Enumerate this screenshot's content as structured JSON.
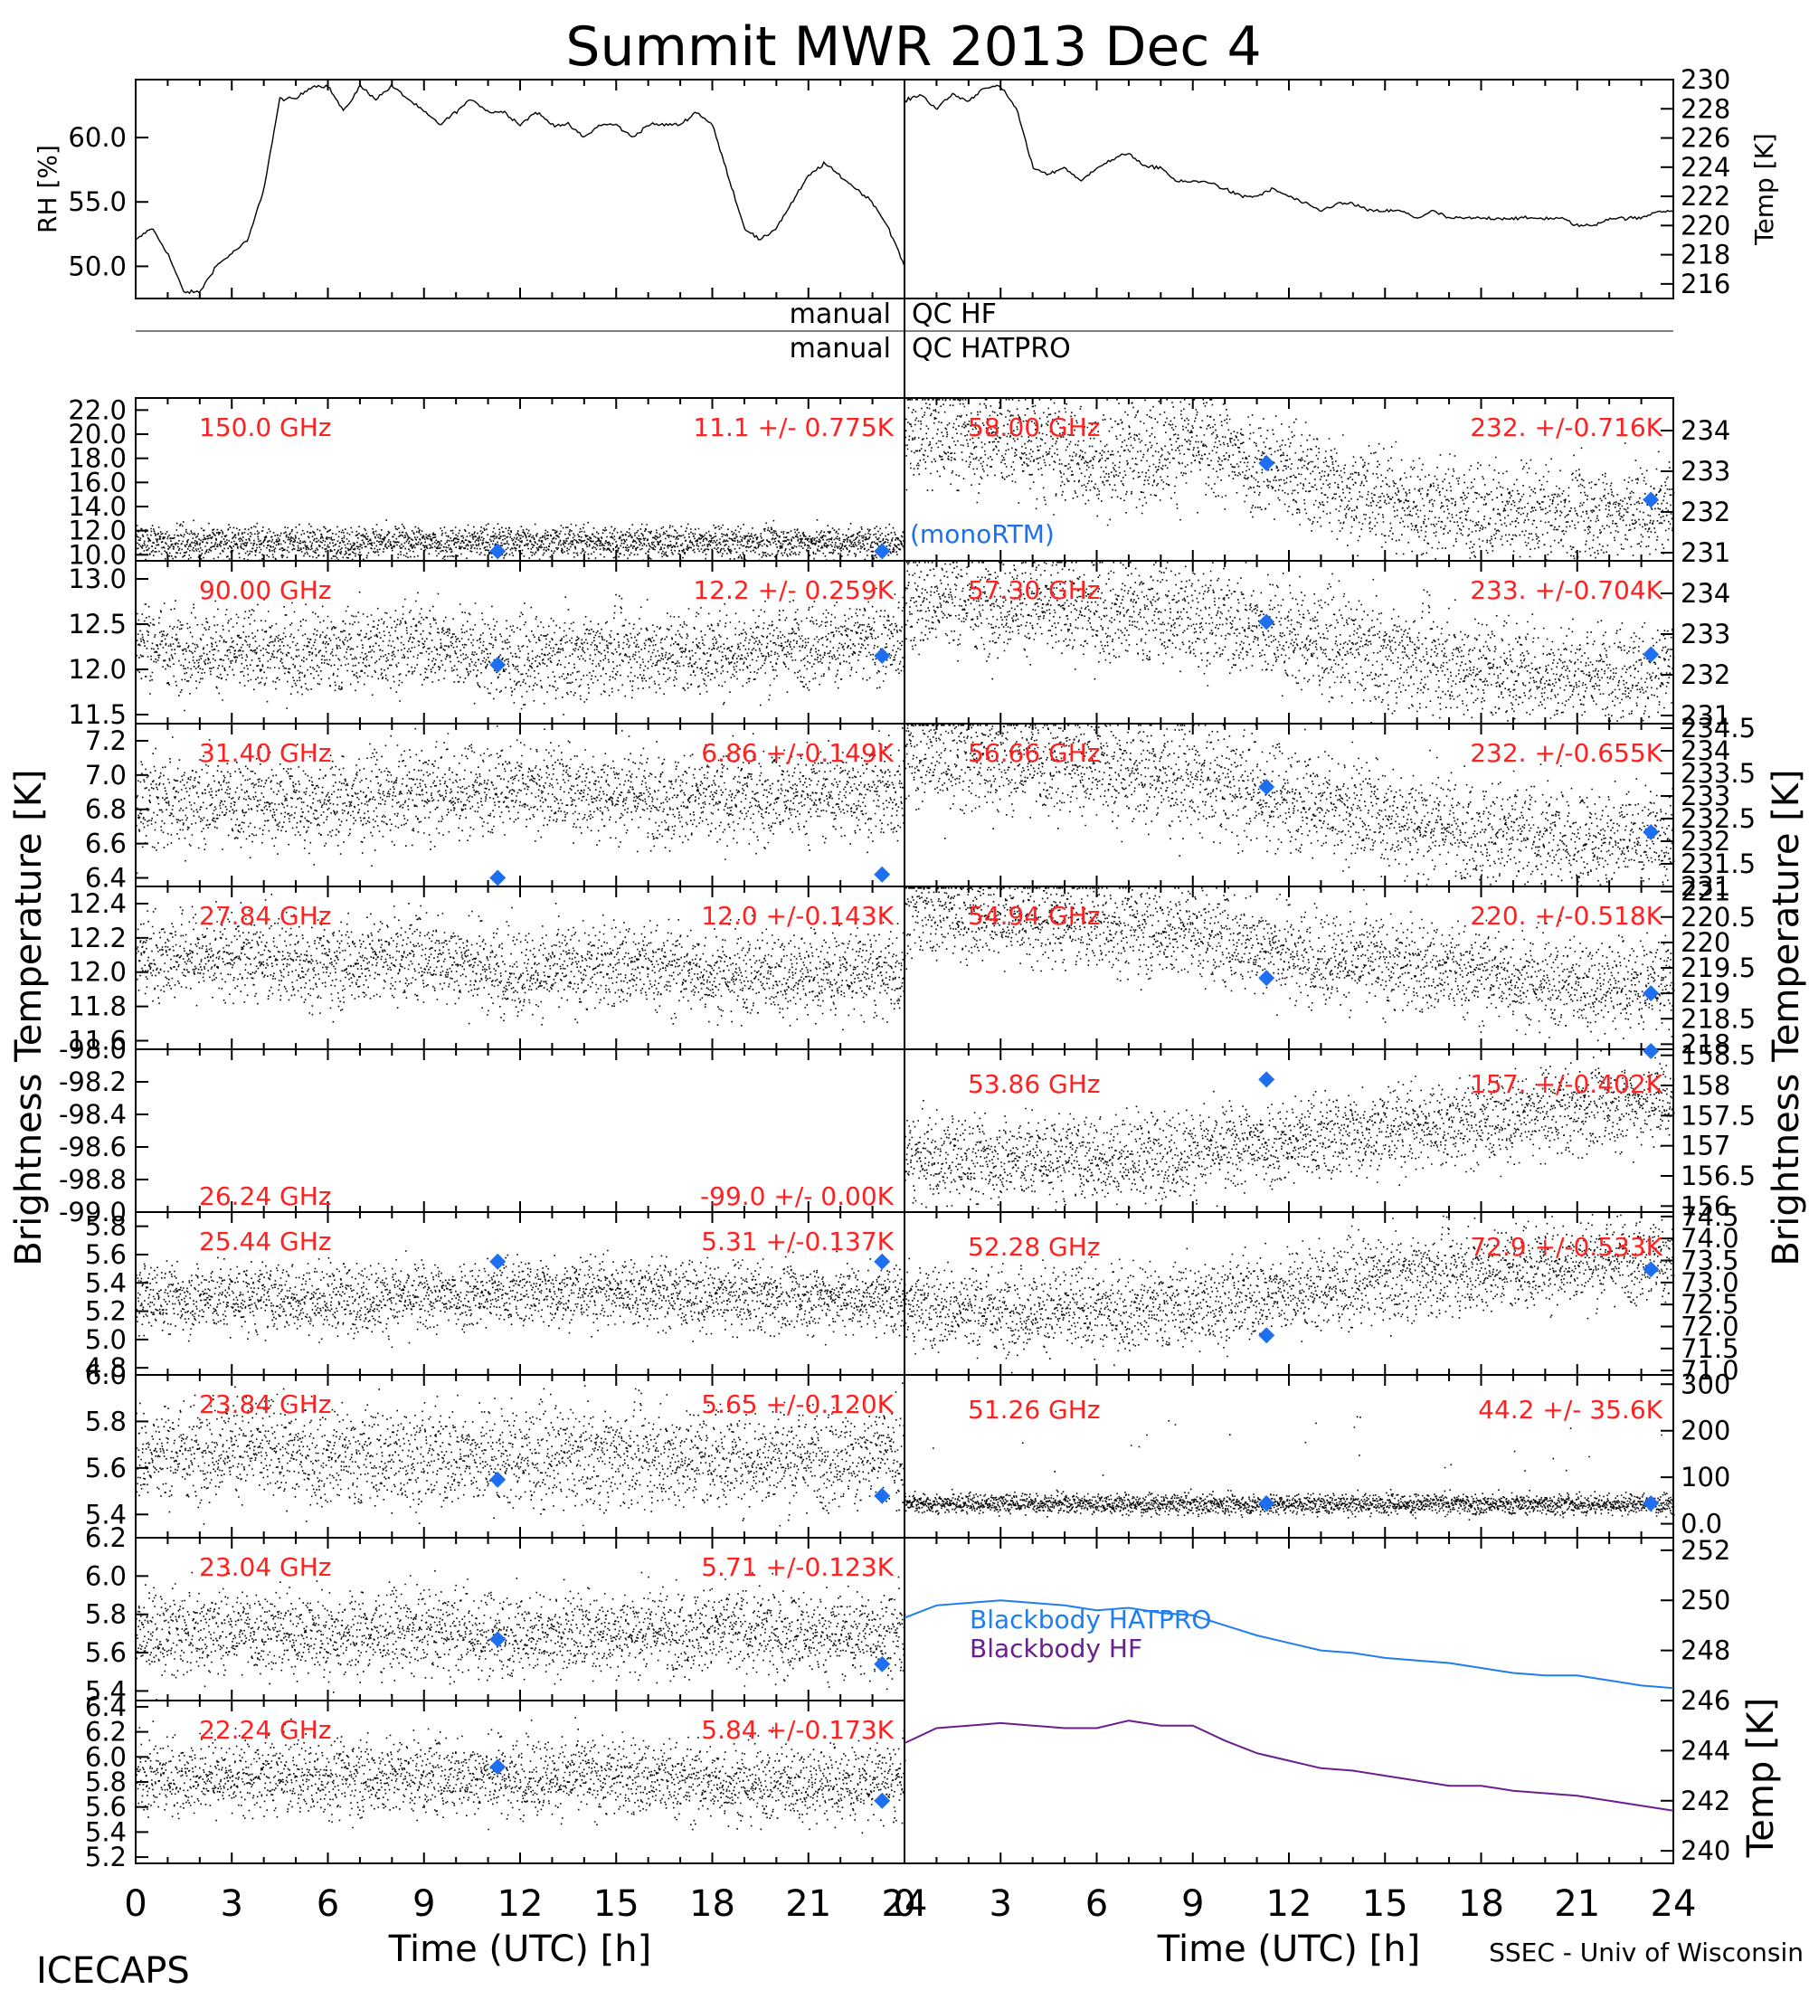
{
  "title": "Summit MWR 2013 Dec  4",
  "footer": {
    "left_label": "ICECAPS",
    "right_label": "SSEC - Univ of Wisconsin",
    "xlabel": "Time (UTC) [h]",
    "x_ticks": [
      "0",
      "3",
      "6",
      "9",
      "12",
      "15",
      "18",
      "21",
      "24"
    ]
  },
  "qc": {
    "manual_label": "manual",
    "hf_label": "QC HF",
    "hatpro_label": "QC HATPRO"
  },
  "side_labels": {
    "left": "Brightness Temperature [K]",
    "right": "Brightness Temperature [K]"
  },
  "legend": {
    "model_label": "(monoRTM)"
  },
  "colors": {
    "text": "#000000",
    "annotation": "#ff2020",
    "marker": "#1e6ff0",
    "blackbody_hatpro": "#1e7df0",
    "blackbody_hf": "#6a1f8f"
  },
  "chart_data": [
    {
      "id": "rh",
      "type": "line",
      "ylabel": "RH [%]",
      "ylim": [
        47.5,
        64.5
      ],
      "yticks": [
        50,
        55,
        60
      ],
      "x": [
        0,
        0.5,
        1,
        1.5,
        2,
        2.5,
        3,
        3.5,
        4,
        4.5,
        5,
        5.5,
        6,
        6.5,
        7,
        7.5,
        8,
        8.5,
        9,
        9.5,
        10,
        10.5,
        11,
        11.5,
        12,
        12.5,
        13,
        13.5,
        14,
        14.5,
        15,
        15.5,
        16,
        16.5,
        17,
        17.5,
        18,
        18.5,
        19,
        19.5,
        20,
        20.5,
        21,
        21.5,
        22,
        22.5,
        23,
        23.5,
        24
      ],
      "y": [
        52,
        53,
        51,
        48,
        48,
        50,
        51,
        52,
        56,
        63,
        63,
        64,
        64,
        62,
        64,
        63,
        64,
        63,
        62,
        61,
        62,
        63,
        62,
        62,
        61,
        62,
        61,
        61,
        60,
        61,
        61,
        60,
        61,
        61,
        61,
        62,
        61,
        57,
        53,
        52,
        53,
        55,
        57,
        58,
        57,
        56,
        55,
        53,
        50
      ]
    },
    {
      "id": "temp",
      "type": "line",
      "ylabel": "Temp [K]",
      "ylim": [
        215,
        230
      ],
      "yticks": [
        216,
        218,
        220,
        222,
        224,
        226,
        228,
        230
      ],
      "x": [
        0,
        0.5,
        1,
        1.5,
        2,
        2.5,
        3,
        3.5,
        4,
        4.5,
        5,
        5.5,
        6,
        6.5,
        7,
        7.5,
        8,
        8.5,
        9,
        9.5,
        10,
        10.5,
        11,
        11.5,
        12,
        12.5,
        13,
        13.5,
        14,
        14.5,
        15,
        15.5,
        16,
        16.5,
        17,
        17.5,
        18,
        18.5,
        19,
        19.5,
        20,
        20.5,
        21,
        21.5,
        22,
        22.5,
        23,
        23.5,
        24
      ],
      "y": [
        228.5,
        229,
        228,
        229,
        228.5,
        229.5,
        229.5,
        228,
        224,
        223.5,
        224,
        223,
        224,
        224.5,
        225,
        224,
        224,
        223,
        223,
        223,
        222.5,
        222,
        222,
        222.5,
        222,
        221.5,
        221,
        221.5,
        221.5,
        221,
        221,
        221,
        220.5,
        221,
        220.5,
        220.5,
        220.5,
        220.5,
        220.5,
        220.5,
        220.5,
        220.5,
        220,
        220,
        220.5,
        220.5,
        220.5,
        221,
        221
      ]
    },
    {
      "id": "tb150",
      "type": "scatter",
      "freq_label": "150.0 GHz",
      "stats_label": "11.1 +/- 0.775K",
      "ylim": [
        9.5,
        23
      ],
      "yticks": [
        10,
        12,
        14,
        16,
        18,
        20,
        22
      ],
      "x": [
        0,
        3,
        6,
        9,
        12,
        15,
        18,
        21,
        24
      ],
      "y": [
        11.1,
        11.1,
        11.0,
        11.1,
        11.2,
        11.1,
        11.0,
        11.1,
        11.1
      ],
      "noise": 0.775,
      "markers": [
        {
          "x": 11.3,
          "y": 10.3
        },
        {
          "x": 23.3,
          "y": 10.3
        }
      ]
    },
    {
      "id": "tb90",
      "type": "scatter",
      "freq_label": "90.00 GHz",
      "stats_label": "12.2 +/- 0.259K",
      "ylim": [
        11.4,
        13.2
      ],
      "yticks": [
        11.5,
        12.0,
        12.5,
        13.0
      ],
      "x": [
        0,
        3,
        6,
        9,
        12,
        15,
        18,
        21,
        24
      ],
      "y": [
        12.3,
        12.2,
        12.2,
        12.3,
        12.1,
        12.2,
        12.2,
        12.3,
        12.3
      ],
      "noise": 0.259,
      "markers": [
        {
          "x": 11.3,
          "y": 12.05
        },
        {
          "x": 23.3,
          "y": 12.15
        }
      ]
    },
    {
      "id": "tb3140",
      "type": "scatter",
      "freq_label": "31.40 GHz",
      "stats_label": "6.86 +/-0.149K",
      "ylim": [
        6.35,
        7.3
      ],
      "yticks": [
        6.4,
        6.6,
        6.8,
        7.0,
        7.2
      ],
      "x": [
        0,
        3,
        6,
        9,
        12,
        15,
        18,
        21,
        24
      ],
      "y": [
        6.85,
        6.85,
        6.85,
        6.9,
        6.95,
        6.9,
        6.85,
        6.9,
        6.9
      ],
      "noise": 0.149,
      "markers": [
        {
          "x": 11.3,
          "y": 6.4
        },
        {
          "x": 23.3,
          "y": 6.42
        }
      ]
    },
    {
      "id": "tb2784",
      "type": "scatter",
      "freq_label": "27.84 GHz",
      "stats_label": "12.0 +/-0.143K",
      "ylim": [
        11.55,
        12.5
      ],
      "yticks": [
        11.6,
        11.8,
        12.0,
        12.2,
        12.4
      ],
      "x": [
        0,
        3,
        6,
        9,
        12,
        15,
        18,
        21,
        24
      ],
      "y": [
        12.1,
        12.1,
        12.05,
        12.1,
        12.0,
        12.05,
        12.0,
        12.0,
        12.0
      ],
      "noise": 0.143,
      "markers": []
    },
    {
      "id": "tb2624",
      "type": "scatter",
      "freq_label": "26.24 GHz",
      "stats_label": "-99.0 +/- 0.00K",
      "ylim": [
        -99.0,
        -98.0
      ],
      "yticks": [
        -99.0,
        -98.8,
        -98.6,
        -98.4,
        -98.2,
        -98.0
      ],
      "x": [],
      "y": [],
      "noise": 0,
      "markers": []
    },
    {
      "id": "tb2544",
      "type": "scatter",
      "freq_label": "25.44 GHz",
      "stats_label": "5.31 +/-0.137K",
      "ylim": [
        4.75,
        5.9
      ],
      "yticks": [
        4.8,
        5.0,
        5.2,
        5.4,
        5.6,
        5.8
      ],
      "x": [
        0,
        3,
        6,
        9,
        12,
        15,
        18,
        21,
        24
      ],
      "y": [
        5.3,
        5.3,
        5.3,
        5.3,
        5.35,
        5.35,
        5.3,
        5.3,
        5.3
      ],
      "noise": 0.137,
      "markers": [
        {
          "x": 11.3,
          "y": 5.55
        },
        {
          "x": 23.3,
          "y": 5.55
        }
      ]
    },
    {
      "id": "tb2384",
      "type": "scatter",
      "freq_label": "23.84 GHz",
      "stats_label": "5.65 +/-0.120K",
      "ylim": [
        5.3,
        6.0
      ],
      "yticks": [
        5.4,
        5.6,
        5.8,
        6.0
      ],
      "x": [
        0,
        3,
        6,
        9,
        12,
        15,
        18,
        21,
        24
      ],
      "y": [
        5.65,
        5.7,
        5.65,
        5.65,
        5.65,
        5.65,
        5.65,
        5.65,
        5.65
      ],
      "noise": 0.12,
      "markers": [
        {
          "x": 11.3,
          "y": 5.55
        },
        {
          "x": 23.3,
          "y": 5.48
        }
      ]
    },
    {
      "id": "tb2304",
      "type": "scatter",
      "freq_label": "23.04 GHz",
      "stats_label": "5.71 +/-0.123K",
      "ylim": [
        5.35,
        6.2
      ],
      "yticks": [
        5.4,
        5.6,
        5.8,
        6.0,
        6.2
      ],
      "x": [
        0,
        3,
        6,
        9,
        12,
        15,
        18,
        21,
        24
      ],
      "y": [
        5.7,
        5.72,
        5.7,
        5.72,
        5.7,
        5.72,
        5.72,
        5.7,
        5.7
      ],
      "noise": 0.123,
      "markers": [
        {
          "x": 11.3,
          "y": 5.67
        },
        {
          "x": 23.3,
          "y": 5.54
        }
      ]
    },
    {
      "id": "tb2224",
      "type": "scatter",
      "freq_label": "22.24 GHz",
      "stats_label": "5.84 +/-0.173K",
      "ylim": [
        5.15,
        6.45
      ],
      "yticks": [
        5.2,
        5.4,
        5.6,
        5.8,
        6.0,
        6.2,
        6.4
      ],
      "x": [
        0,
        3,
        6,
        9,
        12,
        15,
        18,
        21,
        24
      ],
      "y": [
        5.85,
        5.85,
        5.85,
        5.85,
        5.85,
        5.85,
        5.8,
        5.8,
        5.8
      ],
      "noise": 0.173,
      "markers": [
        {
          "x": 11.3,
          "y": 5.92
        },
        {
          "x": 23.3,
          "y": 5.65
        }
      ]
    },
    {
      "id": "tb5800",
      "type": "scatter",
      "freq_label": "58.00 GHz",
      "stats_label": "232. +/-0.716K",
      "ylim": [
        230.8,
        234.8
      ],
      "yticks": [
        231,
        232,
        233,
        234
      ],
      "x": [
        0,
        3,
        6,
        9,
        12,
        15,
        18,
        21,
        24
      ],
      "y": [
        234.0,
        233.8,
        233.3,
        233.7,
        233.0,
        232.3,
        231.9,
        231.9,
        232.1
      ],
      "noise": 0.716,
      "markers": [
        {
          "x": 11.3,
          "y": 233.2
        },
        {
          "x": 23.3,
          "y": 232.3
        }
      ]
    },
    {
      "id": "tb5730",
      "type": "scatter",
      "freq_label": "57.30 GHz",
      "stats_label": "233. +/-0.704K",
      "ylim": [
        230.8,
        234.8
      ],
      "yticks": [
        231,
        232,
        233,
        234
      ],
      "x": [
        0,
        3,
        6,
        9,
        12,
        15,
        18,
        21,
        24
      ],
      "y": [
        233.9,
        233.8,
        233.6,
        233.5,
        233.0,
        232.5,
        232.2,
        232.0,
        232.1
      ],
      "noise": 0.704,
      "markers": [
        {
          "x": 11.3,
          "y": 233.3
        },
        {
          "x": 23.3,
          "y": 232.5
        }
      ]
    },
    {
      "id": "tb5666",
      "type": "scatter",
      "freq_label": "56.66 GHz",
      "stats_label": "232. +/-0.655K",
      "ylim": [
        231.0,
        234.6
      ],
      "yticks": [
        231.0,
        231.5,
        232.0,
        232.5,
        233.0,
        233.5,
        234.0,
        234.5
      ],
      "x": [
        0,
        3,
        6,
        9,
        12,
        15,
        18,
        21,
        24
      ],
      "y": [
        234.0,
        233.8,
        233.7,
        233.4,
        233.0,
        232.6,
        232.2,
        232.0,
        232.1
      ],
      "noise": 0.655,
      "markers": [
        {
          "x": 11.3,
          "y": 233.2
        },
        {
          "x": 23.3,
          "y": 232.2
        }
      ]
    },
    {
      "id": "tb5494",
      "type": "scatter",
      "freq_label": "54.94 GHz",
      "stats_label": "220. +/-0.518K",
      "ylim": [
        217.9,
        221.1
      ],
      "yticks": [
        218.0,
        218.5,
        219.0,
        219.5,
        220.0,
        220.5,
        221.0
      ],
      "x": [
        0,
        3,
        6,
        9,
        12,
        15,
        18,
        21,
        24
      ],
      "y": [
        220.7,
        220.5,
        220.4,
        220.2,
        219.8,
        219.6,
        219.4,
        219.2,
        219.2
      ],
      "noise": 0.518,
      "markers": [
        {
          "x": 11.3,
          "y": 219.3
        },
        {
          "x": 23.3,
          "y": 219.0
        }
      ]
    },
    {
      "id": "tb5386",
      "type": "scatter",
      "freq_label": "53.86 GHz",
      "stats_label": "157. +/-0.402K",
      "ylim": [
        155.9,
        158.6
      ],
      "yticks": [
        156.0,
        156.5,
        157.0,
        157.5,
        158.0,
        158.5
      ],
      "x": [
        0,
        3,
        6,
        9,
        12,
        15,
        18,
        21,
        24
      ],
      "y": [
        156.8,
        156.8,
        156.8,
        156.9,
        157.1,
        157.3,
        157.4,
        157.6,
        157.8
      ],
      "noise": 0.402,
      "markers": [
        {
          "x": 11.3,
          "y": 158.1
        },
        {
          "x": 23.3,
          "y": 158.7
        }
      ]
    },
    {
      "id": "tb5228",
      "type": "scatter",
      "freq_label": "52.28 GHz",
      "stats_label": "72.9 +/-0.533K",
      "ylim": [
        70.9,
        74.6
      ],
      "yticks": [
        71.0,
        71.5,
        72.0,
        72.5,
        73.0,
        73.5,
        74.0,
        74.5
      ],
      "x": [
        0,
        3,
        6,
        9,
        12,
        15,
        18,
        21,
        24
      ],
      "y": [
        72.5,
        72.4,
        72.4,
        72.5,
        72.8,
        73.1,
        73.3,
        73.5,
        73.6
      ],
      "noise": 0.533,
      "markers": [
        {
          "x": 11.3,
          "y": 71.8
        },
        {
          "x": 23.3,
          "y": 73.3
        }
      ]
    },
    {
      "id": "tb5126",
      "type": "scatter",
      "freq_label": "51.26 GHz",
      "stats_label": "44.2 +/- 35.6K",
      "ylim": [
        -30,
        320
      ],
      "yticks": [
        0,
        100,
        200,
        300
      ],
      "x": [
        0,
        3,
        6,
        9,
        12,
        15,
        18,
        21,
        24
      ],
      "y": [
        45,
        45,
        44,
        44,
        44,
        44,
        44,
        44,
        44
      ],
      "noise": 12,
      "markers": [
        {
          "x": 11.3,
          "y": 44
        },
        {
          "x": 23.3,
          "y": 44
        }
      ]
    },
    {
      "id": "blackbody",
      "type": "line",
      "ylabel": "Temp [K]",
      "ylim": [
        239.5,
        252.5
      ],
      "yticks": [
        240,
        242,
        244,
        246,
        248,
        250,
        252
      ],
      "x": [
        0,
        1,
        2,
        3,
        4,
        5,
        6,
        7,
        8,
        9,
        10,
        11,
        12,
        13,
        14,
        15,
        16,
        17,
        18,
        19,
        20,
        21,
        22,
        23,
        24
      ],
      "series": [
        {
          "name": "Blackbody HATPRO",
          "y": [
            249.3,
            249.8,
            249.9,
            250.0,
            249.9,
            249.8,
            249.6,
            249.7,
            249.5,
            249.4,
            249.0,
            248.6,
            248.3,
            248.0,
            247.9,
            247.7,
            247.6,
            247.5,
            247.3,
            247.1,
            247.0,
            247.0,
            246.8,
            246.6,
            246.5
          ]
        },
        {
          "name": "Blackbody HF",
          "y": [
            244.3,
            244.9,
            245.0,
            245.1,
            245.0,
            244.9,
            244.9,
            245.2,
            245.0,
            245.0,
            244.4,
            243.9,
            243.6,
            243.3,
            243.2,
            243.0,
            242.8,
            242.6,
            242.6,
            242.4,
            242.3,
            242.2,
            242.0,
            241.8,
            241.6
          ]
        }
      ]
    }
  ]
}
